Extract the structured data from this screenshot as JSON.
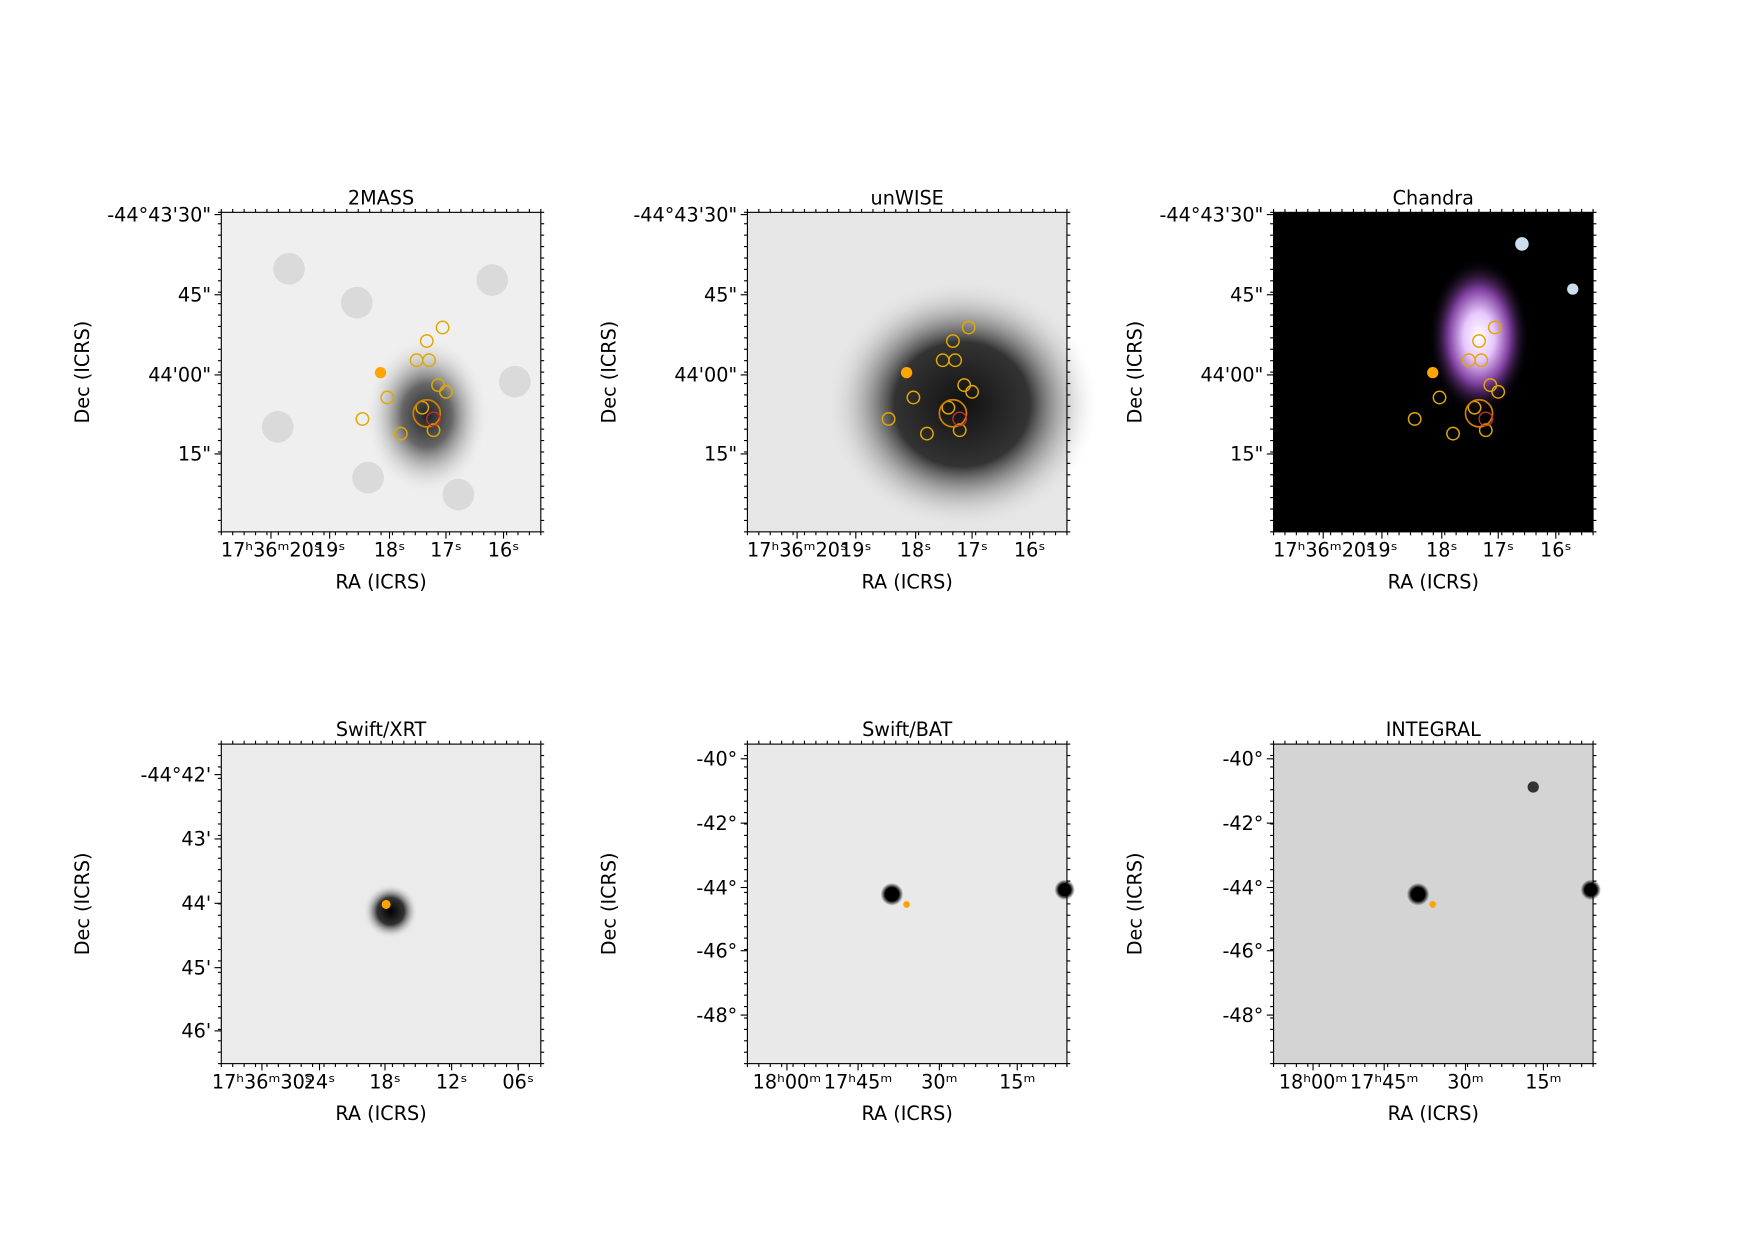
{
  "panels": [
    {
      "title": "2MASS",
      "x_label": "RA (ICRS)",
      "y_label": "Dec (ICRS)",
      "x_ticks": [
        "17ʰ36ᵐ20ˢ",
        "19ˢ",
        "18ˢ",
        "17ˢ",
        "16ˢ"
      ],
      "y_ticks": [
        "-44°43'30\"",
        "45\"",
        "44'00\"",
        "15\""
      ]
    },
    {
      "title": "unWISE",
      "x_label": "RA (ICRS)",
      "y_label": "Dec (ICRS)",
      "x_ticks": [
        "17ʰ36ᵐ20ˢ",
        "19ˢ",
        "18ˢ",
        "17ˢ",
        "16ˢ"
      ],
      "y_ticks": [
        "-44°43'30\"",
        "45\"",
        "44'00\"",
        "15\""
      ]
    },
    {
      "title": "Chandra",
      "x_label": "RA (ICRS)",
      "y_label": "Dec (ICRS)",
      "x_ticks": [
        "17ʰ36ᵐ20ˢ",
        "19ˢ",
        "18ˢ",
        "17ˢ",
        "16ˢ"
      ],
      "y_ticks": [
        "-44°43'30\"",
        "45\"",
        "44'00\"",
        "15\""
      ]
    },
    {
      "title": "Swift/XRT",
      "x_label": "RA (ICRS)",
      "y_label": "Dec (ICRS)",
      "x_ticks": [
        "17ʰ36ᵐ30ˢ",
        "24ˢ",
        "18ˢ",
        "12ˢ",
        "06ˢ"
      ],
      "y_ticks": [
        "-44°42'",
        "43'",
        "44'",
        "45'",
        "46'"
      ]
    },
    {
      "title": "Swift/BAT",
      "x_label": "RA (ICRS)",
      "y_label": "Dec (ICRS)",
      "x_ticks": [
        "18ʰ00ᵐ",
        "17ʰ45ᵐ",
        "30ᵐ",
        "15ᵐ"
      ],
      "y_ticks": [
        "-40°",
        "-42°",
        "-44°",
        "-46°",
        "-48°"
      ]
    },
    {
      "title": "INTEGRAL",
      "x_label": "RA (ICRS)",
      "y_label": "Dec (ICRS)",
      "x_ticks": [
        "18ʰ00ᵐ",
        "17ʰ45ᵐ",
        "30ᵐ",
        "15ᵐ"
      ],
      "y_ticks": [
        "-40°",
        "-42°",
        "-44°",
        "-46°",
        "-48°"
      ]
    }
  ]
}
